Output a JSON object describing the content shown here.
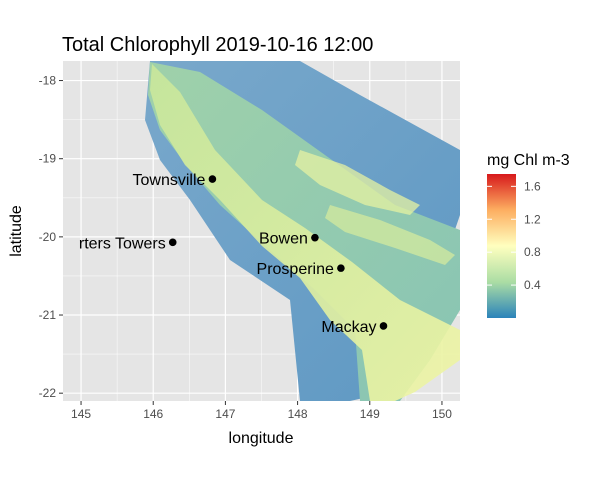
{
  "chart_data": {
    "type": "map",
    "title": "Total Chlorophyll 2019-10-16 12:00",
    "xlabel": "longitude",
    "ylabel": "latitude",
    "xlim": [
      144.75,
      150.25
    ],
    "ylim": [
      -22.1,
      -17.75
    ],
    "x_ticks": [
      145,
      146,
      147,
      148,
      149,
      150
    ],
    "y_ticks": [
      -18,
      -19,
      -20,
      -21,
      -22
    ],
    "x_tick_labels": [
      "145",
      "146",
      "147",
      "148",
      "149",
      "150"
    ],
    "y_tick_labels": [
      "-18",
      "-19",
      "-20",
      "-21",
      "-22"
    ],
    "grid": true,
    "legend": {
      "title": "mg Chl m-3",
      "ticks": [
        0.4,
        0.8,
        1.2,
        1.6
      ],
      "tick_labels": [
        "0.4",
        "0.8",
        "1.2",
        "1.6"
      ],
      "range": [
        0.0,
        1.75
      ],
      "placement": "right",
      "colors": [
        "#2b83ba",
        "#abdda4",
        "#ffffbf",
        "#fdae61",
        "#d7191c"
      ]
    },
    "cities": [
      {
        "name": "Townsville",
        "lon": 146.82,
        "lat": -19.26
      },
      {
        "name": "Charters Towers",
        "label": "rters Towers",
        "lon": 146.27,
        "lat": -20.07
      },
      {
        "name": "Bowen",
        "lon": 148.24,
        "lat": -20.01
      },
      {
        "name": "Prosperine",
        "lon": 148.6,
        "lat": -20.4
      },
      {
        "name": "Mackay",
        "lon": 149.19,
        "lat": -21.14
      }
    ],
    "colors": {
      "panel_background": "#e5e5e5",
      "grid": "#ffffff",
      "ocean_low": "#6a9fc6",
      "shelf_mid": "#8fc9ab",
      "coastal_high": "#dfef9a"
    }
  }
}
